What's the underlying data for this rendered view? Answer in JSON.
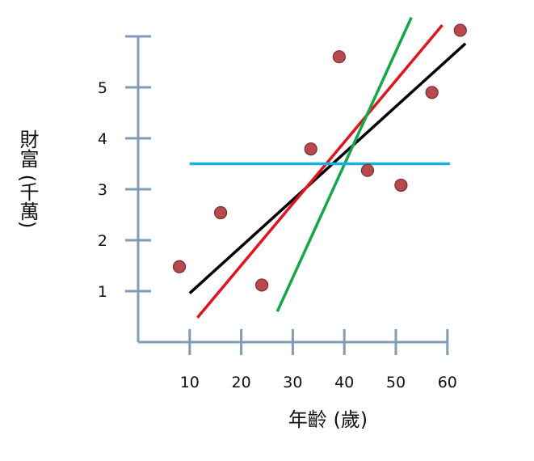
{
  "chart_data": {
    "type": "scatter",
    "xlabel": "年齡 (歲)",
    "ylabel": "財富 (千萬)",
    "x_ticks": [
      10,
      20,
      30,
      40,
      50,
      60
    ],
    "y_ticks": [
      1,
      2,
      3,
      4,
      5
    ],
    "xlim": [
      0,
      60
    ],
    "ylim": [
      0,
      6
    ],
    "grid": false,
    "points": [
      {
        "x": 8,
        "y": 1.48
      },
      {
        "x": 16,
        "y": 2.54
      },
      {
        "x": 24,
        "y": 1.12
      },
      {
        "x": 33.5,
        "y": 3.79
      },
      {
        "x": 39,
        "y": 5.6
      },
      {
        "x": 44.5,
        "y": 3.37
      },
      {
        "x": 51,
        "y": 3.08
      },
      {
        "x": 57,
        "y": 4.9
      },
      {
        "x": 62.5,
        "y": 6.12
      }
    ],
    "lines": [
      {
        "x1": 10,
        "y1": 0.96,
        "x2": 63.5,
        "y2": 5.86,
        "color": "#000000"
      },
      {
        "x1": 11.5,
        "y1": 0.48,
        "x2": 59,
        "y2": 6.22,
        "color": "#e0141b"
      },
      {
        "x1": 27,
        "y1": 0.6,
        "x2": 53,
        "y2": 6.37,
        "color": "#16a64a"
      },
      {
        "x1": 10,
        "y1": 3.5,
        "x2": 60.5,
        "y2": 3.5,
        "color": "#19b0de"
      }
    ],
    "colors": {
      "axis": "#7f9bb8",
      "marker_fill": "#b84a4f",
      "marker_stroke": "#7a2b30"
    }
  }
}
